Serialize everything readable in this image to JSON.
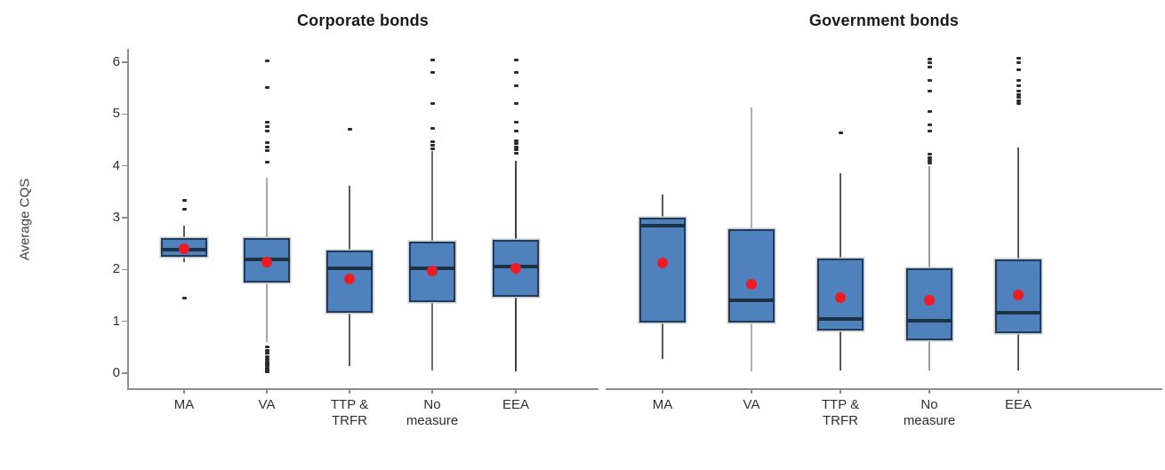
{
  "figure": {
    "y_axis_label": "Average CQS"
  },
  "colors": {
    "box_fill": "#4f81bd",
    "box_border": "#1f3c5f",
    "median_line": "#1e3246",
    "mean_dot": "#ed1c24",
    "outlier_dot": "#2b2b2b",
    "axis_line": "#8c8c8c",
    "tick_text": "#2e2e2e",
    "title_text": "#1a1a1a"
  },
  "chart_data": [
    {
      "type": "box",
      "title": "Corporate bonds",
      "ylabel": "Average CQS",
      "ylim": [
        0,
        6
      ],
      "yticks": [
        0,
        1,
        2,
        3,
        4,
        5,
        6
      ],
      "grid": false,
      "legend": "none",
      "categories": [
        "MA",
        "VA",
        "TTP &\nTRFR",
        "No\nmeasure",
        "EEA"
      ],
      "series": [
        {
          "name": "MA",
          "whisker_low": 2.15,
          "q1": 2.25,
          "median": 2.38,
          "q3": 2.6,
          "whisker_high": 2.85,
          "mean": 2.4,
          "outliers": [
            1.45,
            3.17,
            3.33
          ],
          "whisker_color": "#595959"
        },
        {
          "name": "VA",
          "whisker_low": 0.6,
          "q1": 1.75,
          "median": 2.2,
          "q3": 2.6,
          "whisker_high": 3.77,
          "mean": 2.15,
          "outliers": [
            0.02,
            0.06,
            0.1,
            0.14,
            0.18,
            0.22,
            0.27,
            0.32,
            0.38,
            0.44,
            0.5,
            4.08,
            4.3,
            4.36,
            4.45,
            4.67,
            4.75,
            4.84,
            5.52,
            6.03
          ],
          "whisker_color": "#a8a8a8"
        },
        {
          "name": "TTP & TRFR",
          "whisker_low": 0.14,
          "q1": 1.17,
          "median": 2.02,
          "q3": 2.37,
          "whisker_high": 3.62,
          "mean": 1.81,
          "outliers": [
            4.7
          ],
          "whisker_color": "#595959"
        },
        {
          "name": "No measure",
          "whisker_low": 0.05,
          "q1": 1.37,
          "median": 2.02,
          "q3": 2.54,
          "whisker_high": 4.28,
          "mean": 1.97,
          "outliers": [
            4.33,
            4.4,
            4.47,
            4.72,
            5.2,
            5.8,
            6.05
          ],
          "whisker_color": "#6f6f6f"
        },
        {
          "name": "EEA",
          "whisker_low": 0.03,
          "q1": 1.47,
          "median": 2.05,
          "q3": 2.57,
          "whisker_high": 4.1,
          "mean": 2.02,
          "outliers": [
            4.25,
            4.31,
            4.37,
            4.43,
            4.49,
            4.68,
            4.84,
            5.2,
            5.54,
            5.8,
            6.05
          ],
          "whisker_color": "#404040"
        }
      ]
    },
    {
      "type": "box",
      "title": "Government bonds",
      "ylabel": "Average CQS",
      "ylim": [
        0,
        6
      ],
      "yticks": [
        0,
        1,
        2,
        3,
        4,
        5,
        6
      ],
      "grid": false,
      "legend": "none",
      "categories": [
        "MA",
        "VA",
        "TTP &\nTRFR",
        "No\nmeasure",
        "EEA"
      ],
      "series": [
        {
          "name": "MA",
          "whisker_low": 0.28,
          "q1": 0.97,
          "median": 2.85,
          "q3": 3.0,
          "whisker_high": 3.45,
          "mean": 2.12,
          "outliers": [],
          "whisker_color": "#595959"
        },
        {
          "name": "VA",
          "whisker_low": 0.03,
          "q1": 0.97,
          "median": 1.4,
          "q3": 2.78,
          "whisker_high": 5.13,
          "mean": 1.72,
          "outliers": [],
          "whisker_color": "#b0b0b0"
        },
        {
          "name": "TTP & TRFR",
          "whisker_low": 0.05,
          "q1": 0.82,
          "median": 1.05,
          "q3": 2.22,
          "whisker_high": 3.85,
          "mean": 1.45,
          "outliers": [
            4.64
          ],
          "whisker_color": "#595959"
        },
        {
          "name": "No measure",
          "whisker_low": 0.05,
          "q1": 0.63,
          "median": 1.02,
          "q3": 2.02,
          "whisker_high": 4.0,
          "mean": 1.4,
          "outliers": [
            4.05,
            4.1,
            4.16,
            4.22,
            4.68,
            4.8,
            5.05,
            5.45,
            5.65,
            5.9,
            6.0,
            6.06
          ],
          "whisker_color": "#9a9a9a"
        },
        {
          "name": "EEA",
          "whisker_low": 0.05,
          "q1": 0.77,
          "median": 1.17,
          "q3": 2.2,
          "whisker_high": 4.35,
          "mean": 1.51,
          "outliers": [
            5.2,
            5.26,
            5.32,
            5.38,
            5.45,
            5.55,
            5.65,
            5.85,
            6.0,
            6.08
          ],
          "whisker_color": "#595959"
        }
      ]
    }
  ]
}
